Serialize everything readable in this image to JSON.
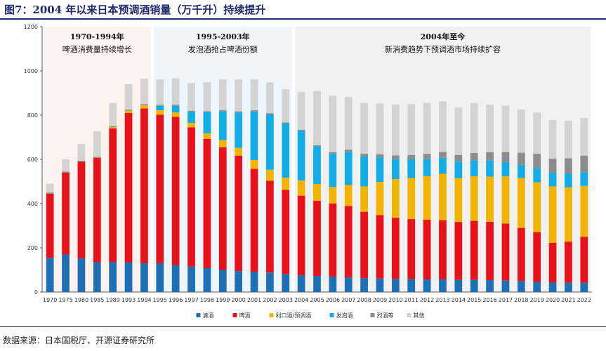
{
  "title": "图7：2004 年以来日本预调酒销量（万千升）持续提升",
  "source": "数据来源：日本国税厅、开源证券研究所",
  "chart_data": {
    "type": "bar",
    "stacked": true,
    "ylim": [
      0,
      1200
    ],
    "yticks": [
      0,
      200,
      400,
      600,
      800,
      1000,
      1200
    ],
    "categories": [
      "1970",
      "1975",
      "1980",
      "1985",
      "1989",
      "1993",
      "1994",
      "1995",
      "1996",
      "1997",
      "1998",
      "1999",
      "2000",
      "2001",
      "2002",
      "2003",
      "2004",
      "2005",
      "2006",
      "2007",
      "2008",
      "2009",
      "2010",
      "2011",
      "2012",
      "2013",
      "2014",
      "2015",
      "2016",
      "2017",
      "2018",
      "2019",
      "2020",
      "2021",
      "2022"
    ],
    "series": [
      {
        "name": "清酒",
        "color": "#1f6fb5",
        "values": [
          155,
          170,
          152,
          135,
          135,
          135,
          130,
          130,
          122,
          115,
          108,
          100,
          95,
          92,
          88,
          82,
          76,
          73,
          70,
          66,
          63,
          61,
          59,
          58,
          57,
          57,
          55,
          55,
          54,
          52,
          50,
          46,
          43,
          42,
          42
        ]
      },
      {
        "name": "啤酒",
        "color": "#e8121b",
        "values": [
          290,
          370,
          437,
          472,
          605,
          675,
          700,
          672,
          670,
          630,
          585,
          555,
          522,
          465,
          415,
          380,
          360,
          340,
          330,
          323,
          300,
          287,
          277,
          272,
          270,
          268,
          262,
          267,
          264,
          258,
          240,
          225,
          180,
          186,
          208
        ]
      },
      {
        "name": "利口酒/预调酒",
        "color": "#f2b400",
        "values": [
          0,
          0,
          0,
          0,
          5,
          10,
          15,
          20,
          20,
          20,
          25,
          32,
          35,
          40,
          50,
          55,
          68,
          76,
          75,
          95,
          115,
          150,
          175,
          185,
          197,
          210,
          198,
          202,
          204,
          213,
          225,
          225,
          255,
          245,
          230
        ]
      },
      {
        "name": "发泡酒",
        "color": "#12ade6",
        "values": [
          0,
          0,
          0,
          0,
          0,
          0,
          0,
          20,
          30,
          50,
          95,
          130,
          160,
          220,
          250,
          245,
          225,
          170,
          150,
          150,
          135,
          110,
          90,
          85,
          78,
          72,
          75,
          70,
          72,
          65,
          60,
          65,
          60,
          62,
          62
        ]
      },
      {
        "name": "烈酒等",
        "color": "#8c8c8c",
        "values": [
          5,
          5,
          5,
          5,
          5,
          5,
          5,
          5,
          5,
          5,
          5,
          5,
          5,
          5,
          5,
          5,
          5,
          5,
          8,
          10,
          12,
          15,
          17,
          20,
          23,
          27,
          30,
          35,
          38,
          45,
          55,
          65,
          65,
          70,
          75
        ]
      },
      {
        "name": "其他",
        "color": "#d3d3d3",
        "values": [
          40,
          55,
          75,
          115,
          105,
          115,
          115,
          115,
          120,
          125,
          130,
          140,
          145,
          140,
          140,
          150,
          170,
          245,
          255,
          238,
          230,
          230,
          230,
          230,
          230,
          228,
          215,
          225,
          215,
          210,
          195,
          185,
          175,
          170,
          170
        ]
      }
    ],
    "eras": [
      {
        "label": "1970-1994年",
        "sub": "啤酒消费量持续增长",
        "from": 0,
        "to": 6,
        "color": "#fdf3ee"
      },
      {
        "label": "1995-2003年",
        "sub": "发泡酒抢占啤酒份额",
        "from": 7,
        "to": 15,
        "color": "#eef6fc"
      },
      {
        "label": "2004年至今",
        "sub": "新消费趋势下预调酒市场持续扩容",
        "from": 16,
        "to": 34,
        "color": "#f1f1f1"
      }
    ]
  }
}
